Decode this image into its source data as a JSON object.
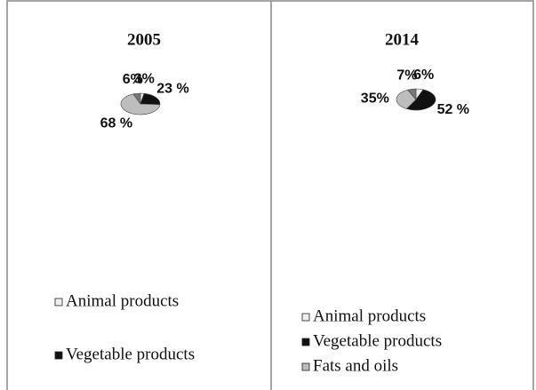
{
  "chart_data": [
    {
      "type": "pie",
      "title": "2005",
      "categories": [
        "Animal products",
        "Vegetable products",
        null,
        null
      ],
      "values": [
        3,
        23,
        68,
        6
      ],
      "value_labels": [
        "3%",
        "23 %",
        "68 %",
        "6%"
      ],
      "colors": [
        "#eeeeee",
        "#111111",
        "#bdbdbd",
        "#777777"
      ]
    },
    {
      "type": "pie",
      "title": "2014",
      "categories": [
        "Animal products",
        "Vegetable products",
        "Fats and oils",
        null
      ],
      "values": [
        6,
        52,
        35,
        7
      ],
      "value_labels": [
        "6%",
        "52 %",
        "35%",
        "7%"
      ],
      "colors": [
        "#eeeeee",
        "#111111",
        "#bdbdbd",
        "#777777"
      ]
    }
  ]
}
